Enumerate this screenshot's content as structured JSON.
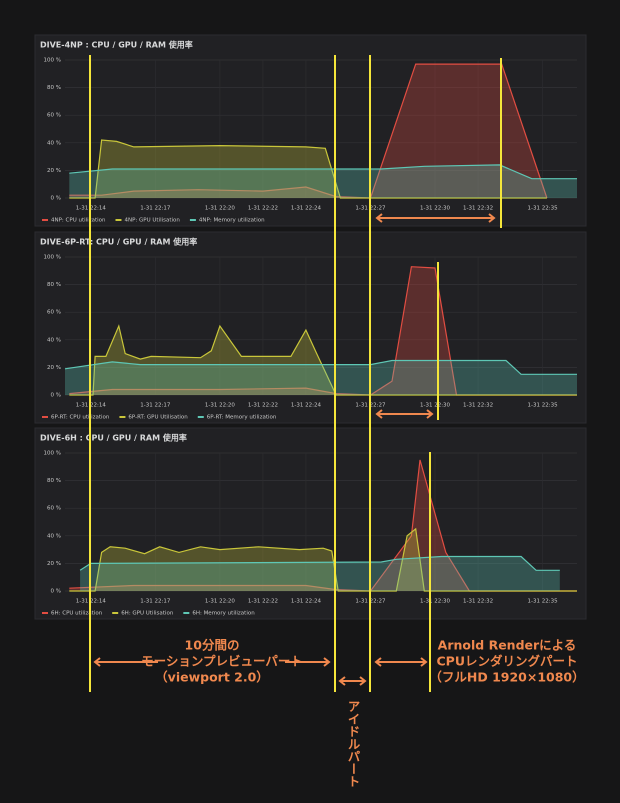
{
  "chart_data": [
    {
      "type": "line",
      "title": "DIVE-4NP : CPU / GPU / RAM 使用率",
      "xlim": [
        12.8,
        36.6
      ],
      "xticks": [
        {
          "value": 14,
          "label": "1-31 22:14"
        },
        {
          "value": 17,
          "label": "1-31 22:17"
        },
        {
          "value": 20,
          "label": "1-31 22:20"
        },
        {
          "value": 22,
          "label": "1-31 22:22"
        },
        {
          "value": 24,
          "label": "1-31 22:24"
        },
        {
          "value": 27,
          "label": "1-31 22:27"
        },
        {
          "value": 30,
          "label": "1-31 22:30"
        },
        {
          "value": 32,
          "label": "1-31 22:32"
        },
        {
          "value": 35,
          "label": "1-31 22:35"
        }
      ],
      "ylim": [
        0,
        100
      ],
      "yticks": [
        {
          "value": 0,
          "label": "0 %"
        },
        {
          "value": 20,
          "label": "20 %"
        },
        {
          "value": 40,
          "label": "40 %"
        },
        {
          "value": 60,
          "label": "60 %"
        },
        {
          "value": 80,
          "label": "80 %"
        },
        {
          "value": 100,
          "label": "100 %"
        }
      ],
      "grid": true,
      "series": [
        {
          "name": "4NP: CPU utilization",
          "color": "#e24d42",
          "x": [
            13,
            14.5,
            16,
            19,
            22,
            24,
            25.4,
            27,
            29.1,
            33.1,
            35.2
          ],
          "values": [
            2,
            2,
            5,
            6,
            5,
            8,
            1,
            0,
            97,
            97,
            0
          ]
        },
        {
          "name": "4NP: GPU Utilisation",
          "color": "#c9c63a",
          "x": [
            13,
            14.2,
            14.5,
            15.2,
            16,
            20,
            24,
            24.9,
            25.6,
            35.2
          ],
          "values": [
            0,
            0,
            42,
            41,
            37,
            38,
            37,
            36,
            0,
            0
          ]
        },
        {
          "name": "4NP: Memory utilization",
          "color": "#5ec7b5",
          "x": [
            13,
            15,
            27.5,
            29.5,
            33,
            34.5,
            36.6
          ],
          "values": [
            18,
            21,
            21,
            23,
            24,
            14,
            14
          ]
        }
      ]
    },
    {
      "type": "line",
      "title": "DIVE-6P-RT: CPU / GPU / RAM 使用率",
      "xlim": [
        12.8,
        36.6
      ],
      "xticks": [
        {
          "value": 14,
          "label": "1-31 22:14"
        },
        {
          "value": 17,
          "label": "1-31 22:17"
        },
        {
          "value": 20,
          "label": "1-31 22:20"
        },
        {
          "value": 22,
          "label": "1-31 22:22"
        },
        {
          "value": 24,
          "label": "1-31 22:24"
        },
        {
          "value": 27,
          "label": "1-31 22:27"
        },
        {
          "value": 30,
          "label": "1-31 22:30"
        },
        {
          "value": 32,
          "label": "1-31 22:32"
        },
        {
          "value": 35,
          "label": "1-31 22:35"
        }
      ],
      "ylim": [
        0,
        100
      ],
      "yticks": [
        {
          "value": 0,
          "label": "0 %"
        },
        {
          "value": 20,
          "label": "20 %"
        },
        {
          "value": 40,
          "label": "40 %"
        },
        {
          "value": 60,
          "label": "60 %"
        },
        {
          "value": 80,
          "label": "80 %"
        },
        {
          "value": 100,
          "label": "100 %"
        }
      ],
      "grid": true,
      "series": [
        {
          "name": "6P-RT: CPU utilization",
          "color": "#e24d42",
          "x": [
            13,
            15,
            20,
            24,
            25.4,
            27,
            28,
            28.9,
            30,
            31,
            36.6
          ],
          "values": [
            1,
            4,
            4,
            5,
            1,
            0,
            10,
            93,
            92,
            0,
            0
          ]
        },
        {
          "name": "6P-RT: GPU Utilisation",
          "color": "#c9c63a",
          "x": [
            13,
            14.1,
            14.2,
            14.7,
            15.3,
            15.6,
            16.3,
            16.8,
            19.1,
            19.6,
            20,
            21,
            23.3,
            24,
            24.5,
            25.4,
            36.6
          ],
          "values": [
            0,
            0,
            28,
            28,
            50,
            30,
            26,
            28,
            27,
            32,
            50,
            28,
            28,
            47,
            30,
            0,
            0
          ]
        },
        {
          "name": "6P-RT: Memory utilization",
          "color": "#5ec7b5",
          "x": [
            12.8,
            15,
            16.3,
            27,
            28,
            33.3,
            34,
            36.6
          ],
          "values": [
            19,
            24,
            22,
            22,
            25,
            25,
            15,
            15
          ]
        }
      ]
    },
    {
      "type": "line",
      "title": "DIVE-6H : CPU / GPU / RAM 使用率",
      "xlim": [
        12.8,
        36.6
      ],
      "xticks": [
        {
          "value": 14,
          "label": "1-31 22:14"
        },
        {
          "value": 17,
          "label": "1-31 22:17"
        },
        {
          "value": 20,
          "label": "1-31 22:20"
        },
        {
          "value": 22,
          "label": "1-31 22:22"
        },
        {
          "value": 24,
          "label": "1-31 22:24"
        },
        {
          "value": 27,
          "label": "1-31 22:27"
        },
        {
          "value": 30,
          "label": "1-31 22:30"
        },
        {
          "value": 32,
          "label": "1-31 22:32"
        },
        {
          "value": 35,
          "label": "1-31 22:35"
        }
      ],
      "ylim": [
        0,
        100
      ],
      "yticks": [
        {
          "value": 0,
          "label": "0 %"
        },
        {
          "value": 20,
          "label": "20 %"
        },
        {
          "value": 40,
          "label": "40 %"
        },
        {
          "value": 60,
          "label": "60 %"
        },
        {
          "value": 80,
          "label": "80 %"
        },
        {
          "value": 100,
          "label": "100 %"
        }
      ],
      "grid": true,
      "series": [
        {
          "name": "6H: CPU utilization",
          "color": "#e24d42",
          "x": [
            13,
            16,
            20,
            24,
            25.4,
            27,
            28.9,
            29.3,
            30.5,
            31.6,
            36.6
          ],
          "values": [
            2,
            4,
            4,
            4,
            1,
            0,
            40,
            95,
            28,
            0,
            0
          ]
        },
        {
          "name": "6H: GPU Utilisation",
          "color": "#c9c63a",
          "x": [
            13,
            14.2,
            14.5,
            14.9,
            15.6,
            16.5,
            17.2,
            18.1,
            19.1,
            20,
            21.8,
            23.7,
            24.8,
            25.2,
            25.5,
            28.2,
            28.7,
            29.1,
            29.5,
            36.6
          ],
          "values": [
            0,
            0,
            28,
            32,
            31,
            27,
            32,
            28,
            32,
            30,
            32,
            30,
            31,
            29,
            0,
            0,
            40,
            45,
            0,
            0
          ]
        },
        {
          "name": "6H: Memory utilization",
          "color": "#5ec7b5",
          "x": [
            13.5,
            14,
            27.5,
            28.2,
            30.3,
            34,
            34.7,
            35.8
          ],
          "values": [
            15,
            20,
            21,
            23,
            25,
            25,
            15,
            15
          ]
        }
      ]
    }
  ],
  "annotations": {
    "preview": [
      "10分間の",
      "モーションプレビューパート",
      "（viewport 2.0）"
    ],
    "idle": "アイドルパート",
    "render": [
      "Arnold Renderによる",
      "CPUレンダリングパート",
      "（フルHD 1920×1080）"
    ]
  }
}
